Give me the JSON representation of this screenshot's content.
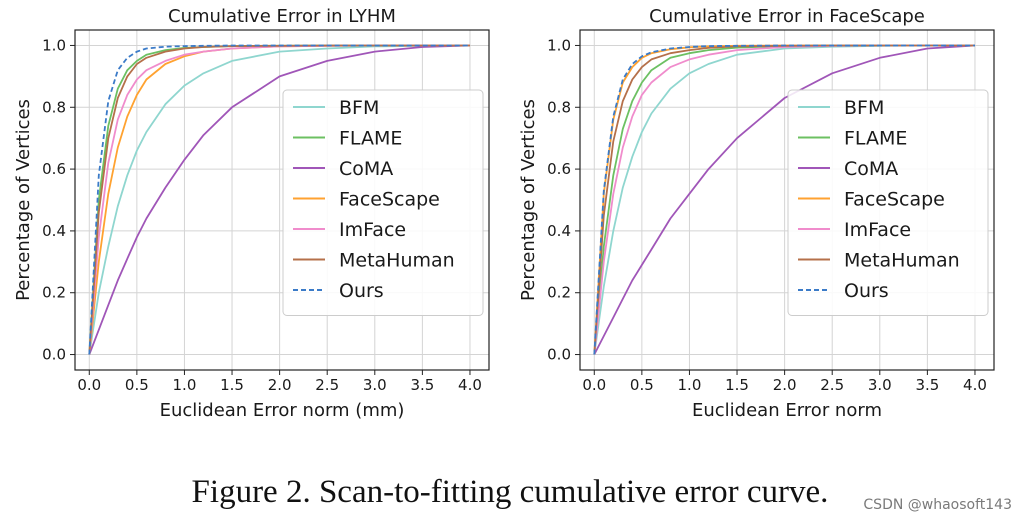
{
  "chart_data": [
    {
      "type": "line",
      "title": "Cumulative Error in LYHM",
      "xlabel": "Euclidean Error norm (mm)",
      "ylabel": "Percentage of Vertices",
      "xlim": [
        -0.15,
        4.2
      ],
      "ylim": [
        -0.05,
        1.05
      ],
      "xticks": [
        "0.0",
        "0.5",
        "1.0",
        "1.5",
        "2.0",
        "2.5",
        "3.0",
        "3.5",
        "4.0"
      ],
      "yticks": [
        "0.0",
        "0.2",
        "0.4",
        "0.6",
        "0.8",
        "1.0"
      ],
      "grid": true,
      "legend_position": "center-right",
      "x": [
        0.0,
        0.1,
        0.2,
        0.3,
        0.4,
        0.5,
        0.6,
        0.8,
        1.0,
        1.2,
        1.5,
        2.0,
        2.5,
        3.0,
        3.5,
        4.0
      ],
      "series": [
        {
          "name": "BFM",
          "color": "#8fd6cf",
          "style": "solid",
          "values": [
            0.0,
            0.2,
            0.35,
            0.48,
            0.58,
            0.66,
            0.72,
            0.81,
            0.87,
            0.91,
            0.95,
            0.98,
            0.99,
            0.997,
            0.999,
            1.0
          ]
        },
        {
          "name": "FLAME",
          "color": "#6cc062",
          "style": "solid",
          "values": [
            0.0,
            0.5,
            0.74,
            0.86,
            0.92,
            0.95,
            0.97,
            0.985,
            0.992,
            0.995,
            0.998,
            0.999,
            1.0,
            1.0,
            1.0,
            1.0
          ]
        },
        {
          "name": "CoMA",
          "color": "#a056b8",
          "style": "solid",
          "values": [
            0.0,
            0.08,
            0.16,
            0.24,
            0.31,
            0.38,
            0.44,
            0.54,
            0.63,
            0.71,
            0.8,
            0.9,
            0.95,
            0.98,
            0.995,
            1.0
          ]
        },
        {
          "name": "FaceScape",
          "color": "#ffa230",
          "style": "solid",
          "values": [
            0.0,
            0.3,
            0.52,
            0.67,
            0.77,
            0.84,
            0.89,
            0.94,
            0.965,
            0.98,
            0.99,
            0.997,
            0.999,
            1.0,
            1.0,
            1.0
          ]
        },
        {
          "name": "ImFace",
          "color": "#f08ccc",
          "style": "solid",
          "values": [
            0.0,
            0.38,
            0.62,
            0.76,
            0.84,
            0.89,
            0.92,
            0.95,
            0.97,
            0.98,
            0.99,
            0.997,
            0.999,
            1.0,
            1.0,
            1.0
          ]
        },
        {
          "name": "MetaHuman",
          "color": "#b5704a",
          "style": "solid",
          "values": [
            0.0,
            0.46,
            0.7,
            0.83,
            0.9,
            0.94,
            0.96,
            0.98,
            0.99,
            0.995,
            0.998,
            0.999,
            1.0,
            1.0,
            1.0,
            1.0
          ]
        },
        {
          "name": "Ours",
          "color": "#3b7bc8",
          "style": "dashed",
          "values": [
            0.0,
            0.58,
            0.82,
            0.92,
            0.96,
            0.98,
            0.99,
            0.996,
            0.998,
            0.999,
            1.0,
            1.0,
            1.0,
            1.0,
            1.0,
            1.0
          ]
        }
      ]
    },
    {
      "type": "line",
      "title": "Cumulative Error in FaceScape",
      "xlabel": "Euclidean Error norm",
      "ylabel": "Percentage of Vertices",
      "xlim": [
        -0.15,
        4.2
      ],
      "ylim": [
        -0.05,
        1.05
      ],
      "xticks": [
        "0.0",
        "0.5",
        "1.0",
        "1.5",
        "2.0",
        "2.5",
        "3.0",
        "3.5",
        "4.0"
      ],
      "yticks": [
        "0.0",
        "0.2",
        "0.4",
        "0.6",
        "0.8",
        "1.0"
      ],
      "grid": true,
      "legend_position": "center-right",
      "x": [
        0.0,
        0.1,
        0.2,
        0.3,
        0.4,
        0.5,
        0.6,
        0.8,
        1.0,
        1.2,
        1.5,
        2.0,
        2.5,
        3.0,
        3.5,
        4.0
      ],
      "series": [
        {
          "name": "BFM",
          "color": "#8fd6cf",
          "style": "solid",
          "values": [
            0.0,
            0.22,
            0.4,
            0.54,
            0.64,
            0.72,
            0.78,
            0.86,
            0.91,
            0.94,
            0.97,
            0.99,
            0.996,
            0.999,
            1.0,
            1.0
          ]
        },
        {
          "name": "FLAME",
          "color": "#6cc062",
          "style": "solid",
          "values": [
            0.0,
            0.35,
            0.58,
            0.73,
            0.82,
            0.88,
            0.92,
            0.96,
            0.975,
            0.985,
            0.993,
            0.998,
            1.0,
            1.0,
            1.0,
            1.0
          ]
        },
        {
          "name": "CoMA",
          "color": "#a056b8",
          "style": "solid",
          "values": [
            0.0,
            0.06,
            0.12,
            0.18,
            0.24,
            0.29,
            0.34,
            0.44,
            0.52,
            0.6,
            0.7,
            0.83,
            0.91,
            0.96,
            0.99,
            1.0
          ]
        },
        {
          "name": "FaceScape",
          "color": "#ffa230",
          "style": "solid",
          "values": [
            0.0,
            0.52,
            0.76,
            0.88,
            0.93,
            0.96,
            0.975,
            0.988,
            0.994,
            0.997,
            0.999,
            1.0,
            1.0,
            1.0,
            1.0,
            1.0
          ]
        },
        {
          "name": "ImFace",
          "color": "#f08ccc",
          "style": "solid",
          "values": [
            0.0,
            0.3,
            0.52,
            0.67,
            0.77,
            0.84,
            0.88,
            0.93,
            0.955,
            0.97,
            0.985,
            0.995,
            0.999,
            1.0,
            1.0,
            1.0
          ]
        },
        {
          "name": "MetaHuman",
          "color": "#b5704a",
          "style": "solid",
          "values": [
            0.0,
            0.45,
            0.69,
            0.82,
            0.89,
            0.93,
            0.955,
            0.975,
            0.985,
            0.992,
            0.997,
            0.999,
            1.0,
            1.0,
            1.0,
            1.0
          ]
        },
        {
          "name": "Ours",
          "color": "#3b7bc8",
          "style": "dashed",
          "values": [
            0.0,
            0.53,
            0.77,
            0.89,
            0.94,
            0.965,
            0.978,
            0.99,
            0.995,
            0.998,
            0.999,
            1.0,
            1.0,
            1.0,
            1.0,
            1.0
          ]
        }
      ]
    }
  ],
  "caption": "Figure 2. Scan-to-fitting cumulative error curve.",
  "watermark": "CSDN @whaosoft143"
}
